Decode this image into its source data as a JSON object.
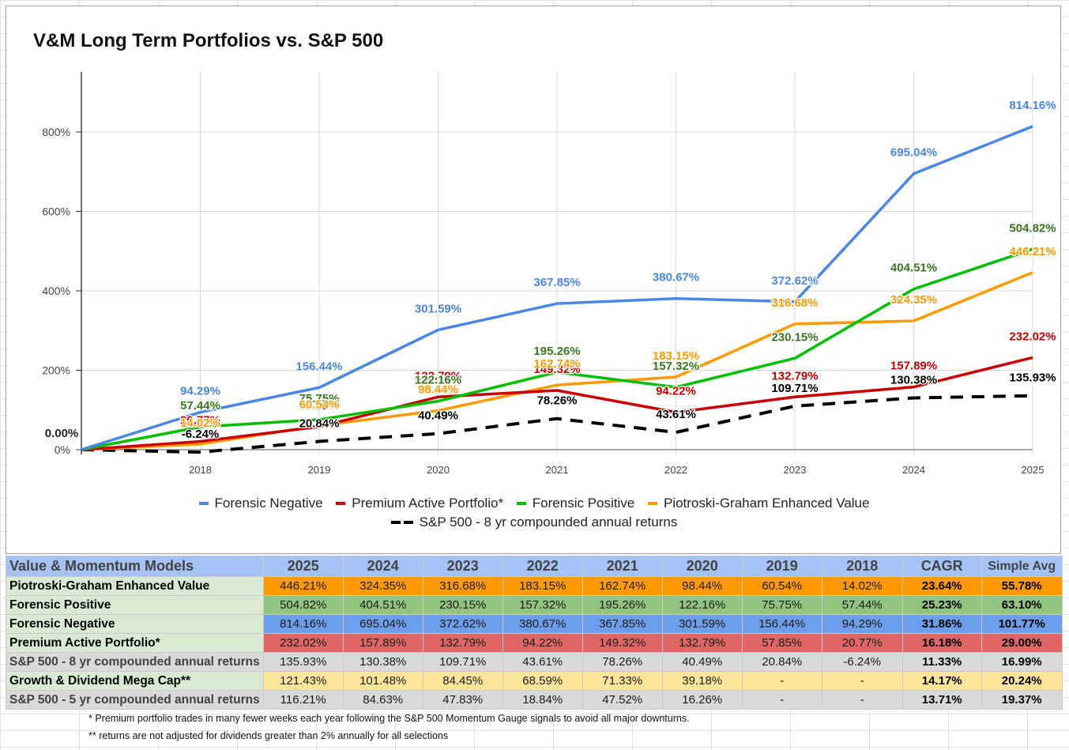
{
  "chart_data": {
    "type": "line",
    "title": "V&M Long Term Portfolios vs. S&P 500",
    "xlabel": "",
    "ylabel": "",
    "x": [
      "",
      "2018",
      "2019",
      "2020",
      "2021",
      "2022",
      "2023",
      "2024",
      "2025"
    ],
    "ylim": [
      0,
      900
    ],
    "yticks": [
      0,
      200,
      400,
      600,
      800
    ],
    "ytick_labels": [
      "0%",
      "200%",
      "400%",
      "600%",
      "800%"
    ],
    "grid": true,
    "legend_position": "bottom",
    "start_label": "0.00%",
    "series": [
      {
        "name": "Forensic Negative",
        "color": "#4a86e8",
        "label_color": "#4a86e8",
        "dashed": false,
        "values": [
          0,
          94.29,
          156.44,
          301.59,
          367.85,
          380.67,
          372.62,
          695.04,
          814.16
        ]
      },
      {
        "name": "Premium Active Portfolio*",
        "color": "#cc0000",
        "label_color": "#cc0000",
        "dashed": false,
        "values": [
          0,
          20.77,
          57.85,
          132.79,
          149.32,
          94.22,
          132.79,
          157.89,
          232.02
        ]
      },
      {
        "name": "Forensic Positive",
        "color": "#00c000",
        "label_color": "#38761d",
        "dashed": false,
        "values": [
          0,
          57.44,
          75.75,
          122.16,
          195.26,
          157.32,
          230.15,
          404.51,
          504.82
        ]
      },
      {
        "name": "Piotroski-Graham Enhanced Value",
        "color": "#ff9900",
        "label_color": "#ff9900",
        "dashed": false,
        "values": [
          0,
          14.02,
          60.54,
          98.44,
          162.74,
          183.15,
          316.68,
          324.35,
          446.21
        ]
      },
      {
        "name": "S&P 500 - 8 yr compounded annual returns",
        "color": "#000000",
        "label_color": "#000000",
        "dashed": true,
        "values": [
          0,
          -6.24,
          20.84,
          40.49,
          78.26,
          43.61,
          109.71,
          130.38,
          135.93
        ]
      }
    ]
  },
  "legend": {
    "items": [
      {
        "label": "Forensic Negative",
        "color": "#4a86e8"
      },
      {
        "label": "Premium Active Portfolio*",
        "color": "#cc0000"
      },
      {
        "label": "Forensic Positive",
        "color": "#00c000"
      },
      {
        "label": "Piotroski-Graham Enhanced Value",
        "color": "#ff9900"
      }
    ],
    "dashed_item": {
      "label": "S&P 500 - 8 yr compounded annual returns",
      "color": "#000000"
    }
  },
  "table": {
    "header": [
      "Value & Momentum Models",
      "2025",
      "2024",
      "2023",
      "2022",
      "2021",
      "2020",
      "2019",
      "2018",
      "CAGR",
      "Simple Avg"
    ],
    "rows": [
      {
        "label": "Piotroski-Graham Enhanced Value",
        "bg": "#ff9900",
        "label_style": "green",
        "values": [
          "446.21%",
          "324.35%",
          "316.68%",
          "183.15%",
          "162.74%",
          "98.44%",
          "60.54%",
          "14.02%",
          "23.64%",
          "55.78%"
        ]
      },
      {
        "label": "Forensic Positive",
        "bg": "#93c47d",
        "label_style": "green",
        "values": [
          "504.82%",
          "404.51%",
          "230.15%",
          "157.32%",
          "195.26%",
          "122.16%",
          "75.75%",
          "57.44%",
          "25.23%",
          "63.10%"
        ]
      },
      {
        "label": "Forensic Negative",
        "bg": "#6d9eeb",
        "label_style": "green",
        "values": [
          "814.16%",
          "695.04%",
          "372.62%",
          "380.67%",
          "367.85%",
          "301.59%",
          "156.44%",
          "94.29%",
          "31.86%",
          "101.77%"
        ]
      },
      {
        "label": "Premium Active Portfolio*",
        "bg": "#e06666",
        "label_style": "green",
        "values": [
          "232.02%",
          "157.89%",
          "132.79%",
          "94.22%",
          "149.32%",
          "132.79%",
          "57.85%",
          "20.77%",
          "16.18%",
          "29.00%"
        ]
      },
      {
        "label": "S&P 500 - 8 yr compounded annual returns",
        "bg": "#d9d9d9",
        "label_style": "gray",
        "values": [
          "135.93%",
          "130.38%",
          "109.71%",
          "43.61%",
          "78.26%",
          "40.49%",
          "20.84%",
          "-6.24%",
          "11.33%",
          "16.99%"
        ]
      },
      {
        "label": "Growth & Dividend Mega Cap**",
        "bg": "#ffe599",
        "label_style": "green",
        "values": [
          "121.43%",
          "101.48%",
          "84.45%",
          "68.59%",
          "71.33%",
          "39.18%",
          "-",
          "-",
          "14.17%",
          "20.24%"
        ]
      },
      {
        "label": "S&P 500 - 5 yr compounded annual returns",
        "bg": "#d9d9d9",
        "label_style": "gray",
        "values": [
          "116.21%",
          "84.63%",
          "47.83%",
          "18.84%",
          "47.52%",
          "16.26%",
          "-",
          "-",
          "13.71%",
          "19.37%"
        ]
      }
    ]
  },
  "footnotes": [
    "* Premium portfolio trades in many fewer weeks each year following the S&P 500 Momentum Gauge signals to avoid all major downturns.",
    "** returns are not adjusted for dividends greater than 2% annually for all selections"
  ]
}
